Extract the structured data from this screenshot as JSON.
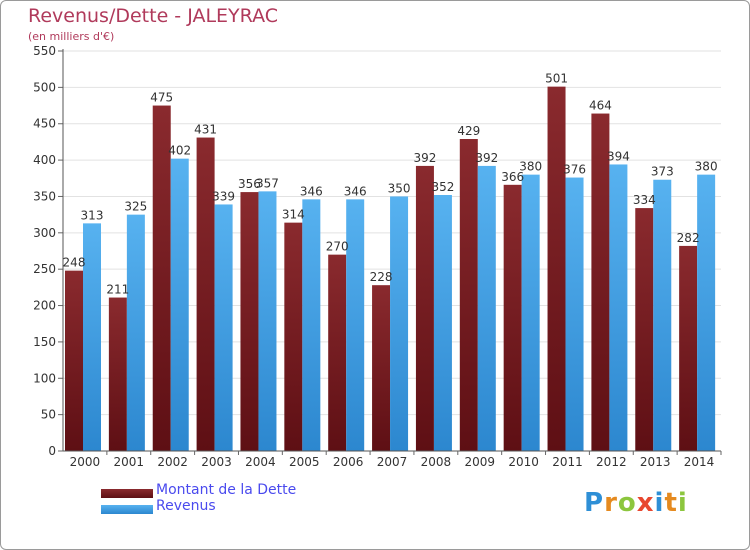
{
  "title": "Revenus/Dette - JALEYRAC",
  "subtitle": "(en milliers d'€)",
  "brand": "Proxiti",
  "chart_data": {
    "type": "bar",
    "categories": [
      "2000",
      "2001",
      "2002",
      "2003",
      "2004",
      "2005",
      "2006",
      "2007",
      "2008",
      "2009",
      "2010",
      "2011",
      "2012",
      "2013",
      "2014"
    ],
    "series": [
      {
        "name": "Montant de la Dette",
        "color": "#7a1a1e",
        "values": [
          248,
          211,
          475,
          431,
          356,
          314,
          270,
          228,
          392,
          429,
          366,
          501,
          464,
          334,
          282
        ]
      },
      {
        "name": "Revenus",
        "color": "#3e9fe6",
        "values": [
          313,
          325,
          402,
          339,
          357,
          346,
          346,
          350,
          352,
          392,
          380,
          376,
          394,
          373,
          380
        ]
      }
    ],
    "ylim": [
      0,
      550
    ],
    "yticks": [
      0,
      50,
      100,
      150,
      200,
      250,
      300,
      350,
      400,
      450,
      500,
      550
    ],
    "grid": true,
    "legend": "bottom-left"
  }
}
